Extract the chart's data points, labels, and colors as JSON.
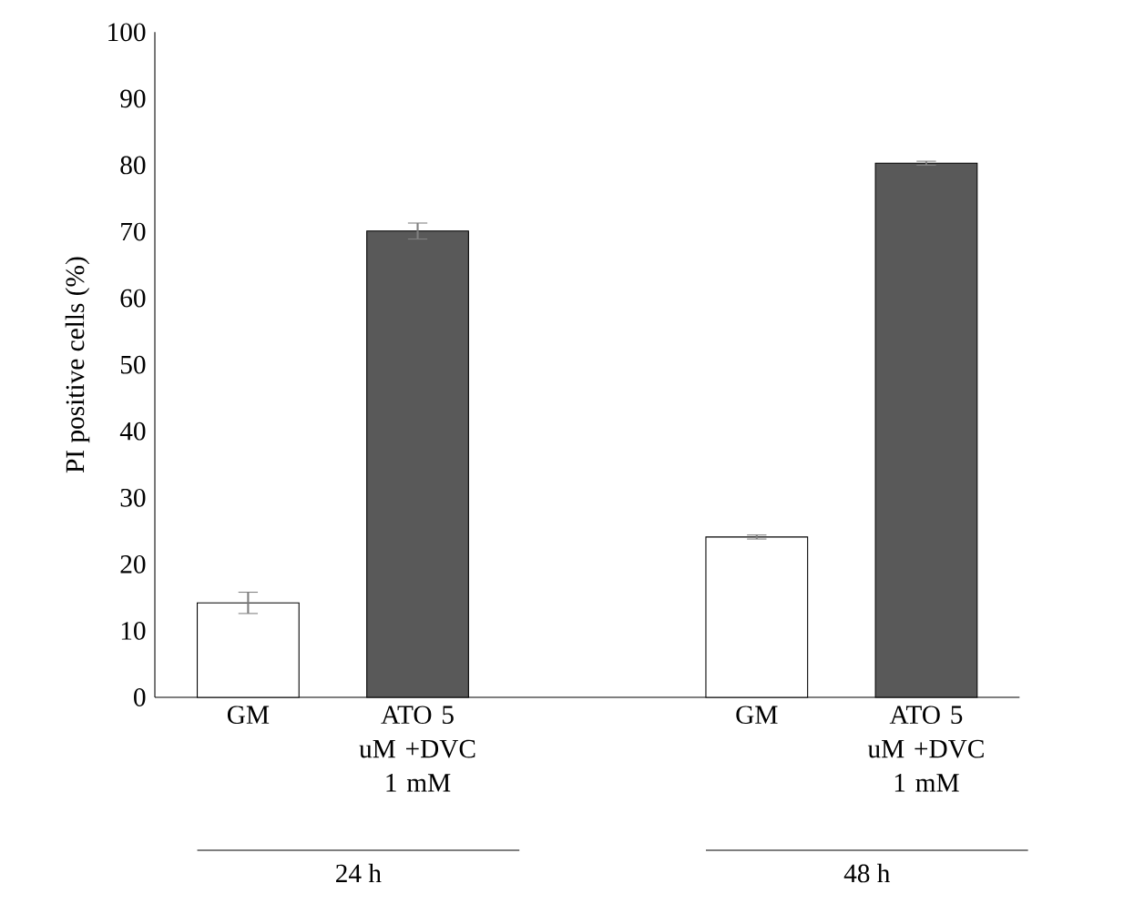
{
  "chart_data": {
    "type": "bar",
    "ylabel": "PI positive cells (%)",
    "categories": [
      "GM",
      "ATO 5 uM +DVC 1 mM",
      null,
      "GM",
      "ATO 5 uM +DVC 1 mM"
    ],
    "values": [
      14.2,
      70.1,
      null,
      24.1,
      80.3
    ],
    "errors": [
      1.6,
      1.2,
      null,
      0.3,
      0.3
    ],
    "colors": [
      "#ffffff",
      "#595959",
      null,
      "#ffffff",
      "#595959"
    ],
    "ylim": [
      0,
      100
    ],
    "yticks": [
      0,
      10,
      20,
      30,
      40,
      50,
      60,
      70,
      80,
      90,
      100
    ],
    "annotations": [
      "24 h",
      "48 h"
    ],
    "grid": false
  }
}
